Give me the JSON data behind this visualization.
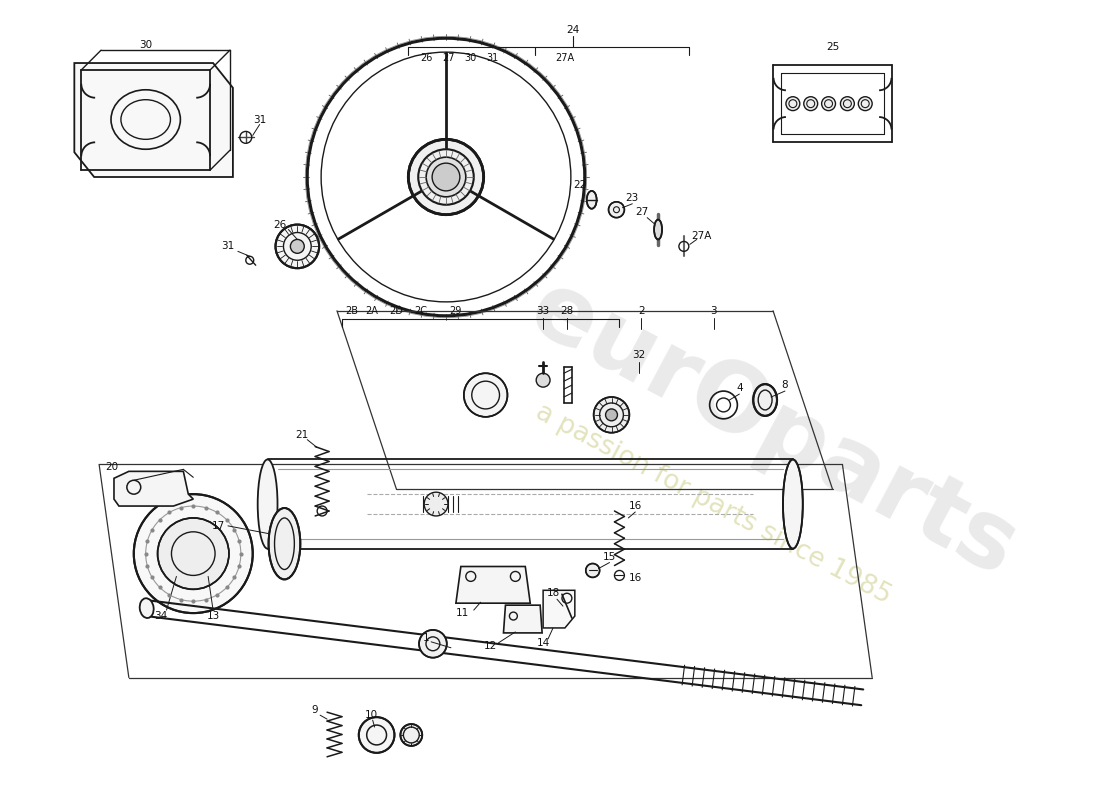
{
  "bg_color": "#ffffff",
  "lc": "#1a1a1a",
  "watermark1": "eurOparts",
  "watermark2": "a passion for parts since 1985",
  "fig_w": 11.0,
  "fig_h": 8.0,
  "dpi": 100,
  "xlim": [
    0,
    1100
  ],
  "ylim": [
    0,
    800
  ]
}
